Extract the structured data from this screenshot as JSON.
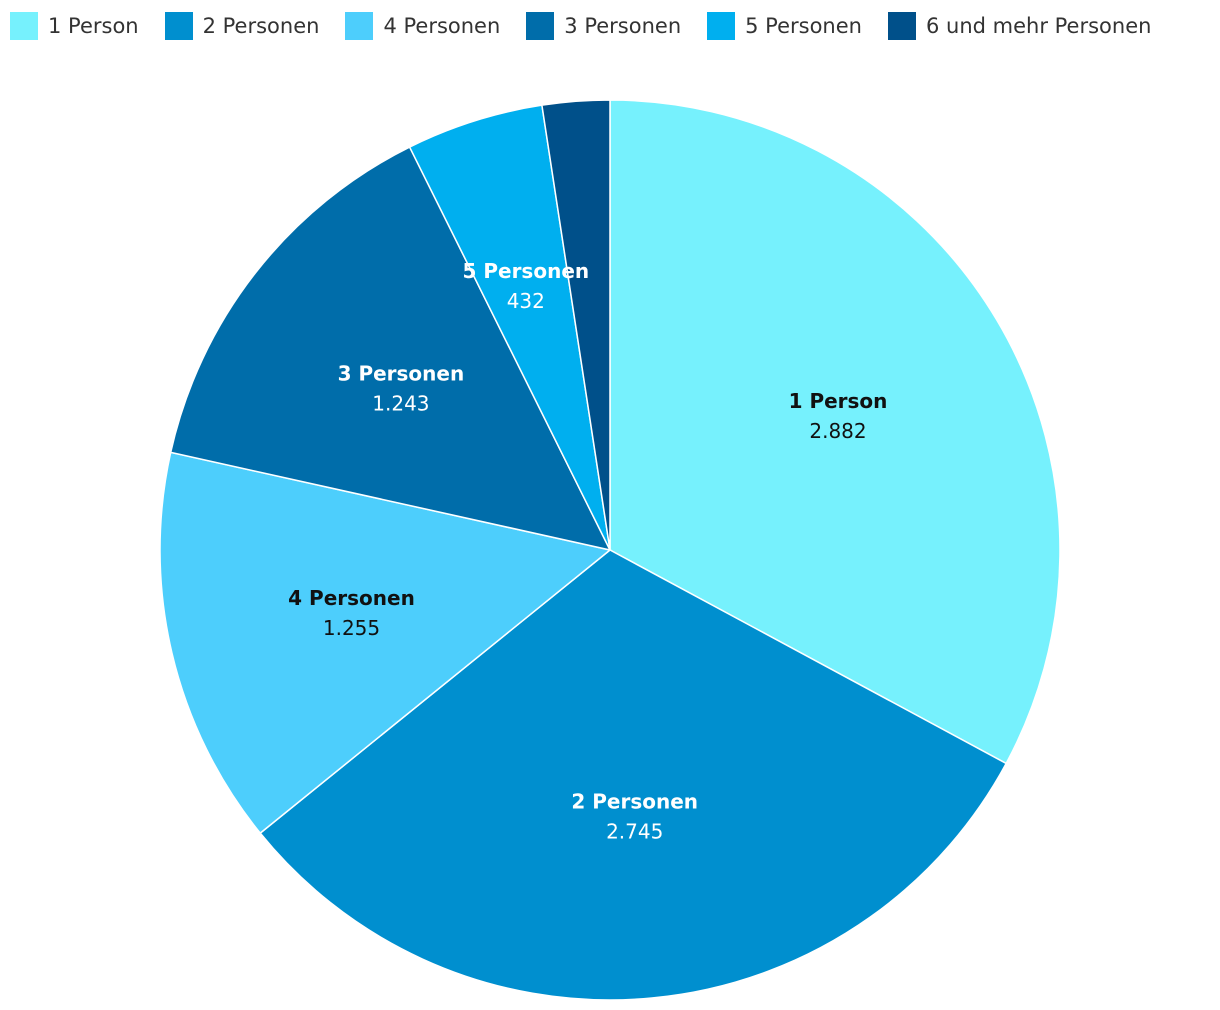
{
  "chart_data": {
    "type": "pie",
    "start_angle_deg": 0,
    "direction": "clockwise",
    "legend_position": "top-left",
    "slices": [
      {
        "name": "1 Person",
        "value": 2882,
        "value_label": "2.882",
        "color": "#76F1FD",
        "label_color": "#111111",
        "show_label": true
      },
      {
        "name": "2 Personen",
        "value": 2745,
        "value_label": "2.745",
        "color": "#008FCF",
        "label_color": "#ffffff",
        "show_label": true
      },
      {
        "name": "4 Personen",
        "value": 1255,
        "value_label": "1.255",
        "color": "#4DCEFC",
        "label_color": "#111111",
        "show_label": true
      },
      {
        "name": "3 Personen",
        "value": 1243,
        "value_label": "1.243",
        "color": "#006DAA",
        "label_color": "#ffffff",
        "show_label": true
      },
      {
        "name": "5 Personen",
        "value": 432,
        "value_label": "432",
        "color": "#00AFEF",
        "label_color": "#ffffff",
        "show_label": true
      },
      {
        "name": "6 und mehr Personen",
        "value": 212,
        "value_label": "",
        "color": "#00508A",
        "label_color": "#ffffff",
        "show_label": false
      }
    ]
  }
}
